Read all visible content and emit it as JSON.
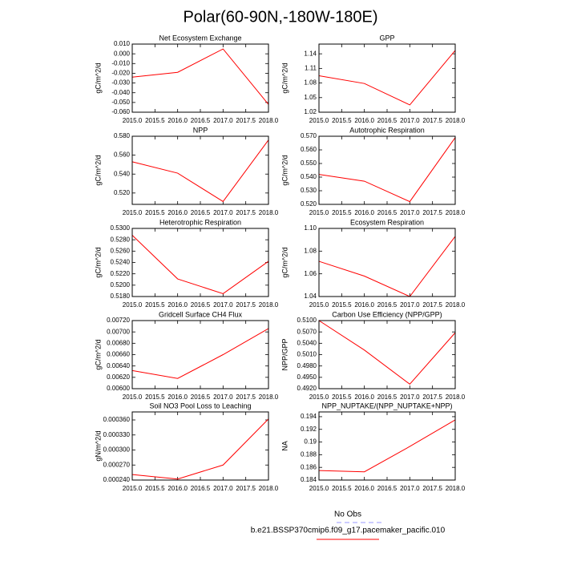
{
  "title": "Polar(60-90N,-180W-180E)",
  "legend": [
    {
      "name": "No Obs",
      "color": "#9999ff",
      "dash": true
    },
    {
      "name": "b.e21.BSSP370cmip6.f09_g17.pacemaker_pacific.010",
      "color": "#ff0000",
      "dash": false
    }
  ],
  "chart_data": [
    {
      "type": "line",
      "title": "Net Ecosystem Exchange",
      "ylabel": "gC/m^2/d",
      "x": [
        2015,
        2016,
        2017,
        2018
      ],
      "values": [
        -0.024,
        -0.019,
        0.005,
        -0.052
      ],
      "color": "#ff0000",
      "xlim": [
        2015,
        2018
      ],
      "xticks": [
        {
          "value": 2015,
          "label": "2015.0"
        },
        {
          "value": 2015.5,
          "label": "2015.5"
        },
        {
          "value": 2016,
          "label": "2016.0"
        },
        {
          "value": 2016.5,
          "label": "2016.5"
        },
        {
          "value": 2017,
          "label": "2017.0"
        },
        {
          "value": 2017.5,
          "label": "2017.5"
        },
        {
          "value": 2018,
          "label": "2018.0"
        }
      ],
      "ylim": [
        -0.06,
        0.01
      ],
      "yticks": [
        {
          "value": 0.01,
          "label": "0.010"
        },
        {
          "value": 0,
          "label": "0.000"
        },
        {
          "value": -0.01,
          "label": "-0.010"
        },
        {
          "value": -0.02,
          "label": "-0.020"
        },
        {
          "value": -0.03,
          "label": "-0.030"
        },
        {
          "value": -0.04,
          "label": "-0.040"
        },
        {
          "value": -0.05,
          "label": "-0.050"
        },
        {
          "value": -0.06,
          "label": "-0.060"
        }
      ]
    },
    {
      "type": "line",
      "title": "GPP",
      "ylabel": "gC/m^2/d",
      "x": [
        2015,
        2016,
        2017,
        2018
      ],
      "values": [
        1.095,
        1.079,
        1.035,
        1.147
      ],
      "color": "#ff0000",
      "xlim": [
        2015,
        2018
      ],
      "xticks": [
        {
          "value": 2015,
          "label": "2015.0"
        },
        {
          "value": 2015.5,
          "label": "2015.5"
        },
        {
          "value": 2016,
          "label": "2016.0"
        },
        {
          "value": 2016.5,
          "label": "2016.5"
        },
        {
          "value": 2017,
          "label": "2017.0"
        },
        {
          "value": 2017.5,
          "label": "2017.5"
        },
        {
          "value": 2018,
          "label": "2018.0"
        }
      ],
      "ylim": [
        1.02,
        1.16
      ],
      "yticks": [
        1.02,
        1.05,
        1.08,
        1.11,
        1.14
      ]
    },
    {
      "type": "line",
      "title": "NPP",
      "ylabel": "gC/m^2/d",
      "x": [
        2015,
        2016,
        2017,
        2018
      ],
      "values": [
        0.553,
        0.541,
        0.511,
        0.576
      ],
      "color": "#ff0000",
      "xlim": [
        2015,
        2018
      ],
      "xticks": [
        {
          "value": 2015,
          "label": "2015.0"
        },
        {
          "value": 2015.5,
          "label": "2015.5"
        },
        {
          "value": 2016,
          "label": "2016.0"
        },
        {
          "value": 2016.5,
          "label": "2016.5"
        },
        {
          "value": 2017,
          "label": "2017.0"
        },
        {
          "value": 2017.5,
          "label": "2017.5"
        },
        {
          "value": 2018,
          "label": "2018.0"
        }
      ],
      "ylim": [
        0.508,
        0.58
      ],
      "yticks": [
        {
          "value": 0.52,
          "label": "0.520"
        },
        {
          "value": 0.54,
          "label": "0.540"
        },
        {
          "value": 0.56,
          "label": "0.560"
        },
        {
          "value": 0.58,
          "label": "0.580"
        }
      ]
    },
    {
      "type": "line",
      "title": "Autotrophic Respiration",
      "ylabel": "gC/m^2/d",
      "x": [
        2015,
        2016,
        2017,
        2018
      ],
      "values": [
        0.542,
        0.537,
        0.522,
        0.569
      ],
      "color": "#ff0000",
      "xlim": [
        2015,
        2018
      ],
      "xticks": [
        {
          "value": 2015,
          "label": "2015.0"
        },
        {
          "value": 2015.5,
          "label": "2015.5"
        },
        {
          "value": 2016,
          "label": "2016.0"
        },
        {
          "value": 2016.5,
          "label": "2016.5"
        },
        {
          "value": 2017,
          "label": "2017.0"
        },
        {
          "value": 2017.5,
          "label": "2017.5"
        },
        {
          "value": 2018,
          "label": "2018.0"
        }
      ],
      "ylim": [
        0.52,
        0.57
      ],
      "yticks": [
        {
          "value": 0.52,
          "label": "0.520"
        },
        {
          "value": 0.53,
          "label": "0.530"
        },
        {
          "value": 0.54,
          "label": "0.540"
        },
        {
          "value": 0.55,
          "label": "0.550"
        },
        {
          "value": 0.56,
          "label": "0.560"
        },
        {
          "value": 0.57,
          "label": "0.570"
        }
      ]
    },
    {
      "type": "line",
      "title": "Heterotrophic Respiration",
      "ylabel": "gC/m^2/d",
      "x": [
        2015,
        2016,
        2017,
        2018
      ],
      "values": [
        0.5288,
        0.5211,
        0.5185,
        0.5242
      ],
      "color": "#ff0000",
      "xlim": [
        2015,
        2018
      ],
      "xticks": [
        {
          "value": 2015,
          "label": "2015.0"
        },
        {
          "value": 2015.5,
          "label": "2015.5"
        },
        {
          "value": 2016,
          "label": "2016.0"
        },
        {
          "value": 2016.5,
          "label": "2016.5"
        },
        {
          "value": 2017,
          "label": "2017.0"
        },
        {
          "value": 2017.5,
          "label": "2017.5"
        },
        {
          "value": 2018,
          "label": "2018.0"
        }
      ],
      "ylim": [
        0.518,
        0.53
      ],
      "yticks": [
        {
          "value": 0.518,
          "label": "0.5180"
        },
        {
          "value": 0.52,
          "label": "0.5200"
        },
        {
          "value": 0.522,
          "label": "0.5220"
        },
        {
          "value": 0.524,
          "label": "0.5240"
        },
        {
          "value": 0.526,
          "label": "0.5260"
        },
        {
          "value": 0.528,
          "label": "0.5280"
        },
        {
          "value": 0.53,
          "label": "0.5300"
        }
      ]
    },
    {
      "type": "line",
      "title": "Ecosystem Respiration",
      "ylabel": "gC/m^2/d",
      "x": [
        2015,
        2016,
        2017,
        2018
      ],
      "values": [
        1.071,
        1.058,
        1.04,
        1.093
      ],
      "color": "#ff0000",
      "xlim": [
        2015,
        2018
      ],
      "xticks": [
        {
          "value": 2015,
          "label": "2015.0"
        },
        {
          "value": 2015.5,
          "label": "2015.5"
        },
        {
          "value": 2016,
          "label": "2016.0"
        },
        {
          "value": 2016.5,
          "label": "2016.5"
        },
        {
          "value": 2017,
          "label": "2017.0"
        },
        {
          "value": 2017.5,
          "label": "2017.5"
        },
        {
          "value": 2018,
          "label": "2018.0"
        }
      ],
      "ylim": [
        1.04,
        1.1
      ],
      "yticks": [
        1.04,
        1.06,
        1.08,
        {
          "value": 1.1,
          "label": "1.10"
        }
      ]
    },
    {
      "type": "line",
      "title": "Gridcell Surface CH4 Flux",
      "ylabel": "gC/m^2/d",
      "x": [
        2015,
        2016,
        2017,
        2018
      ],
      "values": [
        0.00632,
        0.00618,
        0.0066,
        0.00706
      ],
      "color": "#ff0000",
      "xlim": [
        2015,
        2018
      ],
      "xticks": [
        {
          "value": 2015,
          "label": "2015.0"
        },
        {
          "value": 2015.5,
          "label": "2015.5"
        },
        {
          "value": 2016,
          "label": "2016.0"
        },
        {
          "value": 2016.5,
          "label": "2016.5"
        },
        {
          "value": 2017,
          "label": "2017.0"
        },
        {
          "value": 2017.5,
          "label": "2017.5"
        },
        {
          "value": 2018,
          "label": "2018.0"
        }
      ],
      "ylim": [
        0.006,
        0.0072
      ],
      "yticks": [
        {
          "value": 0.006,
          "label": "0.00600"
        },
        {
          "value": 0.0062,
          "label": "0.00620"
        },
        {
          "value": 0.0064,
          "label": "0.00640"
        },
        {
          "value": 0.0066,
          "label": "0.00660"
        },
        {
          "value": 0.0068,
          "label": "0.00680"
        },
        {
          "value": 0.007,
          "label": "0.00700"
        },
        {
          "value": 0.0072,
          "label": "0.00720"
        }
      ]
    },
    {
      "type": "line",
      "title": "Carbon Use Efficiency (NPP/GPP)",
      "ylabel": "NPP/GPP",
      "x": [
        2015,
        2016,
        2017,
        2018
      ],
      "values": [
        0.51,
        0.5022,
        0.4932,
        0.5068
      ],
      "color": "#ff0000",
      "xlim": [
        2015,
        2018
      ],
      "xticks": [
        {
          "value": 2015,
          "label": "2015.0"
        },
        {
          "value": 2015.5,
          "label": "2015.5"
        },
        {
          "value": 2016,
          "label": "2016.0"
        },
        {
          "value": 2016.5,
          "label": "2016.5"
        },
        {
          "value": 2017,
          "label": "2017.0"
        },
        {
          "value": 2017.5,
          "label": "2017.5"
        },
        {
          "value": 2018,
          "label": "2018.0"
        }
      ],
      "ylim": [
        0.492,
        0.51
      ],
      "yticks": [
        {
          "value": 0.492,
          "label": "0.4920"
        },
        {
          "value": 0.495,
          "label": "0.4950"
        },
        {
          "value": 0.498,
          "label": "0.4980"
        },
        {
          "value": 0.501,
          "label": "0.5010"
        },
        {
          "value": 0.504,
          "label": "0.5040"
        },
        {
          "value": 0.507,
          "label": "0.5070"
        },
        {
          "value": 0.51,
          "label": "0.5100"
        }
      ]
    },
    {
      "type": "line",
      "title": "Soil NO3 Pool Loss to Leaching",
      "ylabel": "gN/m^2/d",
      "x": [
        2015,
        2016,
        2017,
        2018
      ],
      "values": [
        0.000251,
        0.000242,
        0.00027,
        0.000362
      ],
      "color": "#ff0000",
      "xlim": [
        2015,
        2018
      ],
      "xticks": [
        {
          "value": 2015,
          "label": "2015.0"
        },
        {
          "value": 2015.5,
          "label": "2015.5"
        },
        {
          "value": 2016,
          "label": "2016.0"
        },
        {
          "value": 2016.5,
          "label": "2016.5"
        },
        {
          "value": 2017,
          "label": "2017.0"
        },
        {
          "value": 2017.5,
          "label": "2017.5"
        },
        {
          "value": 2018,
          "label": "2018.0"
        }
      ],
      "ylim": [
        0.00024,
        0.000376
      ],
      "yticks": [
        {
          "value": 0.00024,
          "label": "0.000240"
        },
        {
          "value": 0.00027,
          "label": "0.000270"
        },
        {
          "value": 0.0003,
          "label": "0.000300"
        },
        {
          "value": 0.00033,
          "label": "0.000330"
        },
        {
          "value": 0.00036,
          "label": "0.000360"
        }
      ]
    },
    {
      "type": "line",
      "title": "NPP_NUPTAKE/(NPP_NUPTAKE+NPP)",
      "ylabel": "NA",
      "x": [
        2015,
        2016,
        2017,
        2018
      ],
      "values": [
        0.1855,
        0.1853,
        0.1893,
        0.1935
      ],
      "color": "#ff0000",
      "xlim": [
        2015,
        2018
      ],
      "xticks": [
        {
          "value": 2015,
          "label": "2015.0"
        },
        {
          "value": 2015.5,
          "label": "2015.5"
        },
        {
          "value": 2016,
          "label": "2016.0"
        },
        {
          "value": 2016.5,
          "label": "2016.5"
        },
        {
          "value": 2017,
          "label": "2017.0"
        },
        {
          "value": 2017.5,
          "label": "2017.5"
        },
        {
          "value": 2018,
          "label": "2018.0"
        }
      ],
      "ylim": [
        0.184,
        0.19475
      ],
      "yticks": [
        0.184,
        0.186,
        0.188,
        0.19,
        0.192,
        0.194
      ]
    }
  ]
}
